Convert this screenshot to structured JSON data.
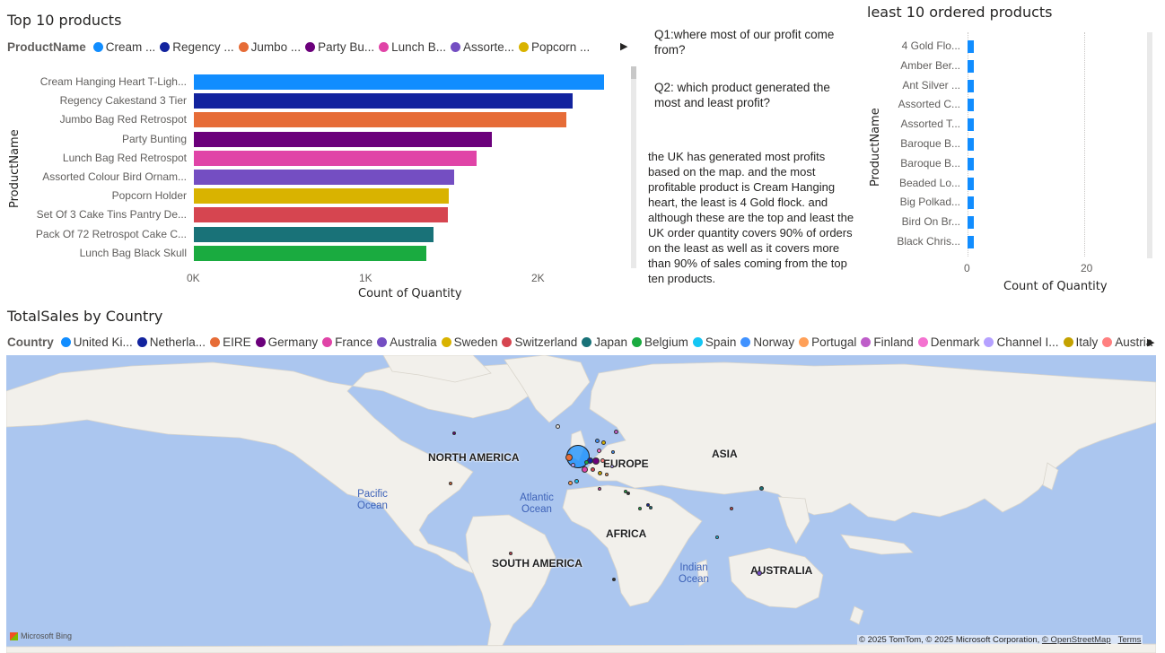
{
  "top_products": {
    "title": "Top 10 products",
    "legend_title": "ProductName",
    "legend_items": [
      {
        "label": "Cream ...",
        "color": "#118DFF"
      },
      {
        "label": "Regency ...",
        "color": "#12239E"
      },
      {
        "label": "Jumbo ...",
        "color": "#E66C37"
      },
      {
        "label": "Party Bu...",
        "color": "#6B007B"
      },
      {
        "label": "Lunch B...",
        "color": "#E044A7"
      },
      {
        "label": "Assorte...",
        "color": "#744EC2"
      },
      {
        "label": "Popcorn ...",
        "color": "#D9B300"
      }
    ],
    "y_axis_title": "ProductName",
    "x_axis_title": "Count of Quantity"
  },
  "chart_data": [
    {
      "type": "bar",
      "orientation": "horizontal",
      "title": "Top 10 products",
      "xlabel": "Count of Quantity",
      "ylabel": "ProductName",
      "xlim": [
        0,
        2500
      ],
      "x_ticks": [
        "0K",
        "1K",
        "2K"
      ],
      "categories": [
        "Cream Hanging Heart T-Ligh...",
        "Regency Cakestand 3 Tier",
        "Jumbo Bag Red Retrospot",
        "Party Bunting",
        "Lunch Bag Red Retrospot",
        "Assorted Colour Bird Ornam...",
        "Popcorn Holder",
        "Set Of 3 Cake Tins Pantry De...",
        "Pack Of 72 Retrospot Cake C...",
        "Lunch Bag Black Skull"
      ],
      "values": [
        2380,
        2200,
        2160,
        1730,
        1640,
        1510,
        1480,
        1475,
        1390,
        1350
      ],
      "colors": [
        "#118DFF",
        "#12239E",
        "#E66C37",
        "#6B007B",
        "#E044A7",
        "#744EC2",
        "#D9B300",
        "#D64550",
        "#197278",
        "#1AAB40"
      ],
      "grid": false
    },
    {
      "type": "bar",
      "orientation": "horizontal",
      "title": "least 10 ordered products",
      "xlabel": "Count of Quantity",
      "ylabel": "ProductName",
      "xlim": [
        0,
        30
      ],
      "x_ticks": [
        "0",
        "20"
      ],
      "categories": [
        "4 Gold Flo...",
        "Amber Ber...",
        "Ant Silver ...",
        "Assorted C...",
        "Assorted T...",
        "Baroque B...",
        "Baroque B...",
        "Beaded Lo...",
        "Big Polkad...",
        "Bird On Br...",
        "Black Chris..."
      ],
      "values": [
        1,
        1,
        1,
        1,
        1,
        1,
        1,
        1,
        1,
        1,
        1
      ],
      "colors": [
        "#118DFF"
      ],
      "grid": true
    }
  ],
  "least_products": {
    "title": "least 10 ordered products",
    "y_axis_title": "ProductName",
    "x_axis_title": "Count of Quantity"
  },
  "questions": {
    "q1": "Q1:where most of our profit come from?",
    "q2": "Q2: which product generated the most and least profit?",
    "answer": "the UK has generated most profits based on the map. and the most profitable product is Cream Hanging heart, the least is 4 Gold flock. and although these are the top and least the UK order quantity covers 90% of orders on the least as well as it covers more than 90% of sales coming from the top ten products."
  },
  "map": {
    "title": "TotalSales by Country",
    "legend_title": "Country",
    "legend_items": [
      {
        "label": "United Ki...",
        "color": "#118DFF"
      },
      {
        "label": "Netherla...",
        "color": "#12239E"
      },
      {
        "label": "EIRE",
        "color": "#E66C37"
      },
      {
        "label": "Germany",
        "color": "#6B007B"
      },
      {
        "label": "France",
        "color": "#E044A7"
      },
      {
        "label": "Australia",
        "color": "#744EC2"
      },
      {
        "label": "Sweden",
        "color": "#D9B300"
      },
      {
        "label": "Switzerland",
        "color": "#D64550"
      },
      {
        "label": "Japan",
        "color": "#197278"
      },
      {
        "label": "Belgium",
        "color": "#1AAB40"
      },
      {
        "label": "Spain",
        "color": "#15C6F4"
      },
      {
        "label": "Norway",
        "color": "#4092FF"
      },
      {
        "label": "Portugal",
        "color": "#FFA058"
      },
      {
        "label": "Finland",
        "color": "#BE5DC9"
      },
      {
        "label": "Denmark",
        "color": "#F472D0"
      },
      {
        "label": "Channel I...",
        "color": "#B5A1FF"
      },
      {
        "label": "Italy",
        "color": "#C4A200"
      },
      {
        "label": "Austria",
        "color": "#FF8080"
      }
    ],
    "labels": {
      "north_america": "NORTH AMERICA",
      "europe": "EUROPE",
      "asia": "ASIA",
      "africa": "AFRICA",
      "south_america": "SOUTH AMERICA",
      "australia": "AUSTRALIA",
      "pacific": "Pacific Ocean",
      "atlantic": "Atlantic Ocean",
      "indian": "Indian Ocean"
    },
    "attribution": "© 2025 TomTom, © 2025 Microsoft Corporation,",
    "osm": "© OpenStreetMap",
    "terms": "Terms",
    "brand": "Microsoft Bing"
  }
}
